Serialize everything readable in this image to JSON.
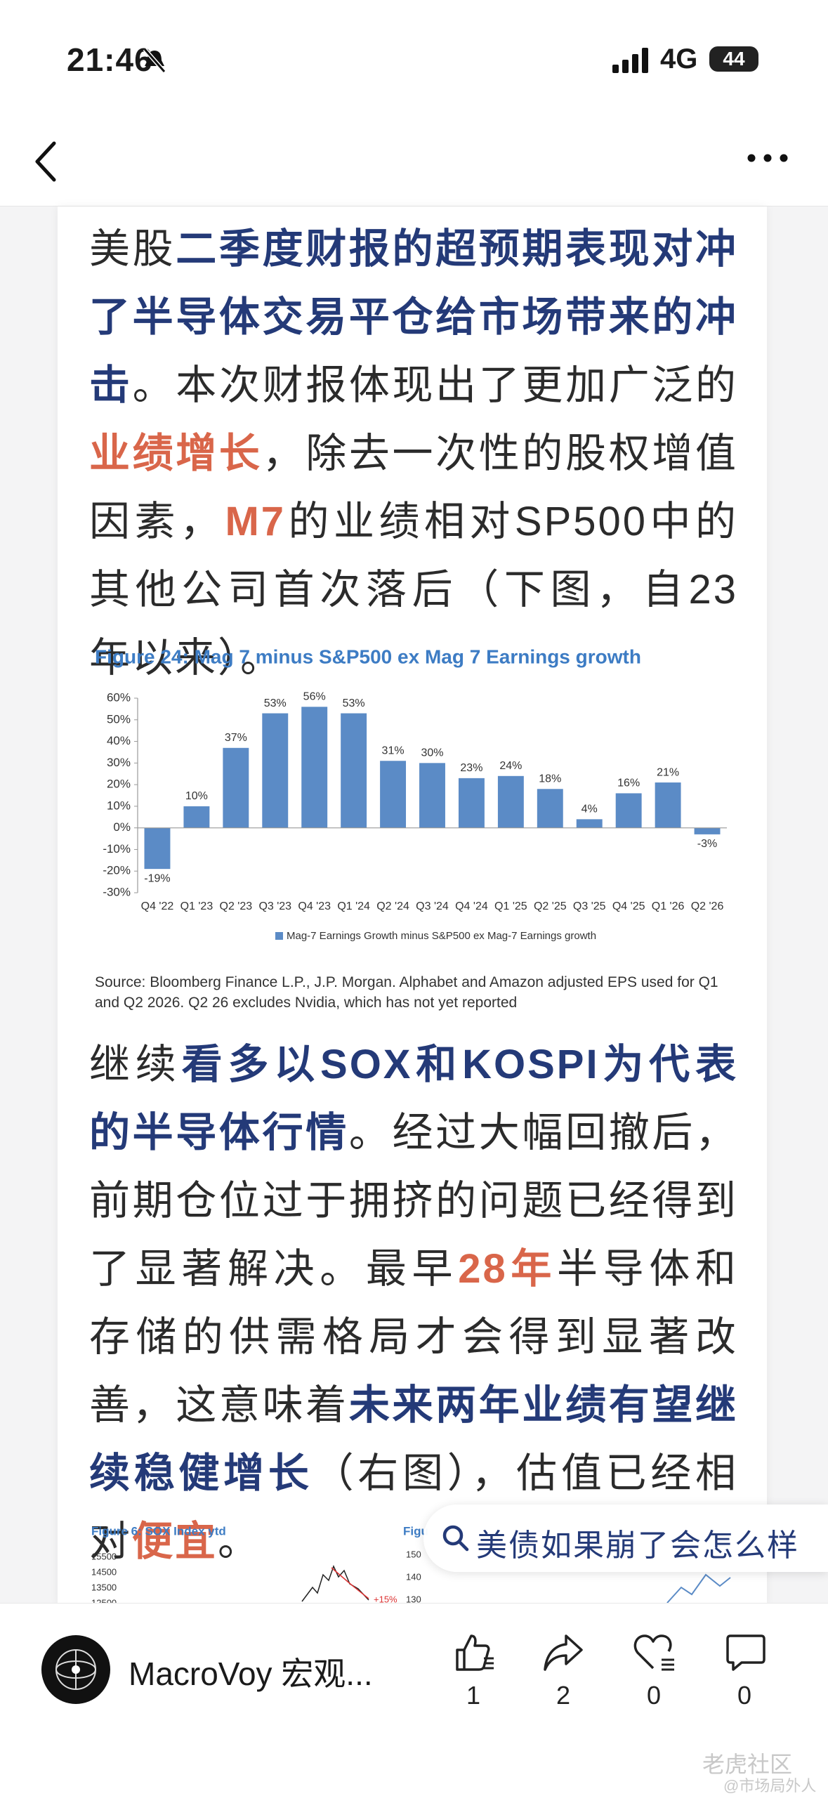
{
  "status_bar": {
    "time": "21:46",
    "network": "4G",
    "battery": "44"
  },
  "article": {
    "paragraphs": [
      [
        {
          "text": "美股",
          "style": "plain"
        },
        {
          "text": "二季度财报的超预期表现对冲了半导体交易平仓给市场带来的冲击",
          "style": "blue"
        },
        {
          "text": "。本次财报体现出了更加广泛的",
          "style": "plain"
        },
        {
          "text": "业绩增长",
          "style": "orange"
        },
        {
          "text": "，除去一次性的股权增值因素，",
          "style": "plain"
        },
        {
          "text": "M7",
          "style": "orange"
        },
        {
          "text": "的业绩相对SP500中的其他公司首次落后（下图，自23年以来）。",
          "style": "plain"
        }
      ],
      [
        {
          "text": "继续",
          "style": "plain"
        },
        {
          "text": "看多以SOX和KOSPI为代表的半导体行情",
          "style": "blue"
        },
        {
          "text": "。经过大幅回撤后，前期仓位过于拥挤的问题已经得到了显著解决。最早",
          "style": "plain"
        },
        {
          "text": "28年",
          "style": "orange"
        },
        {
          "text": "半导体和存储的供需格局才会得到显著改善，这意味着",
          "style": "plain"
        },
        {
          "text": "未来两年业绩有望继续稳健增长",
          "style": "blue"
        },
        {
          "text": "（右图），估值已经相对",
          "style": "plain"
        },
        {
          "text": "便宜",
          "style": "orange"
        },
        {
          "text": "。",
          "style": "plain"
        }
      ]
    ]
  },
  "chart_data": {
    "type": "bar",
    "title": "Figure 24: Mag 7 minus S&P500 ex Mag 7 Earnings growth",
    "categories": [
      "Q4 '22",
      "Q1 '23",
      "Q2 '23",
      "Q3 '23",
      "Q4 '23",
      "Q1 '24",
      "Q2 '24",
      "Q3 '24",
      "Q4 '24",
      "Q1 '25",
      "Q2 '25",
      "Q3 '25",
      "Q4 '25",
      "Q1 '26",
      "Q2 '26"
    ],
    "series": [
      {
        "name": "Mag-7 Earnings Growth minus S&P500 ex Mag-7 Earnings growth",
        "color": "#5b8bc6",
        "values": [
          -19,
          10,
          37,
          53,
          56,
          53,
          31,
          30,
          23,
          24,
          18,
          4,
          16,
          21,
          -3
        ],
        "value_labels": [
          "-19%",
          "10%",
          "37%",
          "53%",
          "56%",
          "53%",
          "31%",
          "30%",
          "23%",
          "24%",
          "18%",
          "4%",
          "16%",
          "21%",
          "-3%"
        ]
      }
    ],
    "ylim": [
      -30,
      60
    ],
    "yticks": [
      {
        "value": -30,
        "label": "-30%"
      },
      {
        "value": -20,
        "label": "-20%"
      },
      {
        "value": -10,
        "label": "-10%"
      },
      {
        "value": 0,
        "label": "0%"
      },
      {
        "value": 10,
        "label": "10%"
      },
      {
        "value": 20,
        "label": "20%"
      },
      {
        "value": 30,
        "label": "30%"
      },
      {
        "value": 40,
        "label": "40%"
      },
      {
        "value": 50,
        "label": "50%"
      },
      {
        "value": 60,
        "label": "60%"
      }
    ],
    "grid": false,
    "legend": "bottom",
    "source": "Source: Bloomberg Finance L.P., J.P. Morgan. Alphabet and Amazon adjusted EPS used for Q1 and Q2 2026. Q2 26 excludes Nvidia, which has not yet reported"
  },
  "preview": {
    "left_title": "Figure 6: SOX Index ytd",
    "left_yticks": [
      "15500",
      "14500",
      "13500",
      "12500"
    ],
    "left_annotation": "+15%",
    "right_title": "Figu",
    "right_yticks": [
      "150",
      "140",
      "130"
    ]
  },
  "search": {
    "query": "美债如果崩了会怎么样"
  },
  "footer": {
    "author": "MacroVoy 宏观...",
    "likes": 1,
    "shares": 2,
    "favorites": 0,
    "comments": 0
  },
  "watermark": {
    "brand": "老虎社区",
    "handle": "@市场局外人"
  }
}
